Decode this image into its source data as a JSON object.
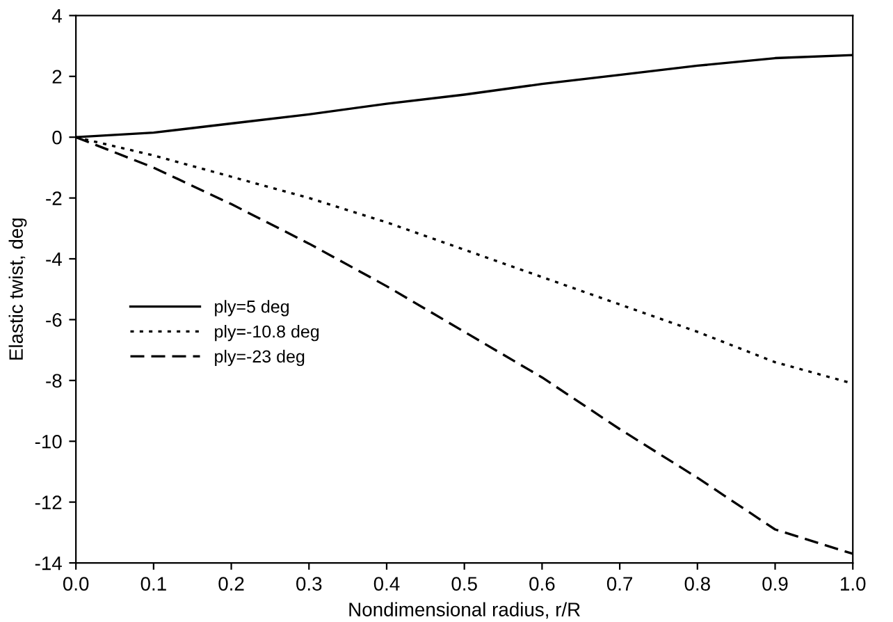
{
  "chart_data": {
    "type": "line",
    "xlabel": "Nondimensional radius, r/R",
    "ylabel": "Elastic twist, deg",
    "x": [
      0,
      0.1,
      0.2,
      0.3,
      0.4,
      0.5,
      0.6,
      0.7,
      0.8,
      0.9,
      1.0
    ],
    "series": [
      {
        "name": "ply=5 deg",
        "color": "#000000",
        "line_style": "solid",
        "values": [
          0,
          0.15,
          0.45,
          0.75,
          1.1,
          1.4,
          1.75,
          2.05,
          2.35,
          2.6,
          2.7
        ]
      },
      {
        "name": "ply=-10.8 deg",
        "color": "#000000",
        "line_style": "dotted",
        "values": [
          0,
          -0.6,
          -1.3,
          -2.0,
          -2.8,
          -3.7,
          -4.6,
          -5.5,
          -6.4,
          -7.4,
          -8.1
        ]
      },
      {
        "name": "ply=-23 deg",
        "color": "#000000",
        "line_style": "dashed",
        "values": [
          0,
          -1.0,
          -2.2,
          -3.5,
          -4.9,
          -6.4,
          -7.9,
          -9.6,
          -11.2,
          -12.9,
          -13.7
        ]
      }
    ],
    "xlim": [
      0,
      1
    ],
    "xticks": [
      {
        "value": 0,
        "label": "0.0"
      },
      {
        "value": 0.1,
        "label": "0.1"
      },
      {
        "value": 0.2,
        "label": "0.2"
      },
      {
        "value": 0.3,
        "label": "0.3"
      },
      {
        "value": 0.4,
        "label": "0.4"
      },
      {
        "value": 0.5,
        "label": "0.5"
      },
      {
        "value": 0.6,
        "label": "0.6"
      },
      {
        "value": 0.7,
        "label": "0.7"
      },
      {
        "value": 0.8,
        "label": "0.8"
      },
      {
        "value": 0.9,
        "label": "0.9"
      },
      {
        "value": 1,
        "label": "1.0"
      }
    ],
    "ylim": [
      -14,
      4
    ],
    "yticks": [
      -14,
      -12,
      -10,
      -8,
      -6,
      -4,
      -2,
      0,
      2,
      4
    ],
    "grid": false,
    "legend": "left",
    "marker": "none"
  }
}
